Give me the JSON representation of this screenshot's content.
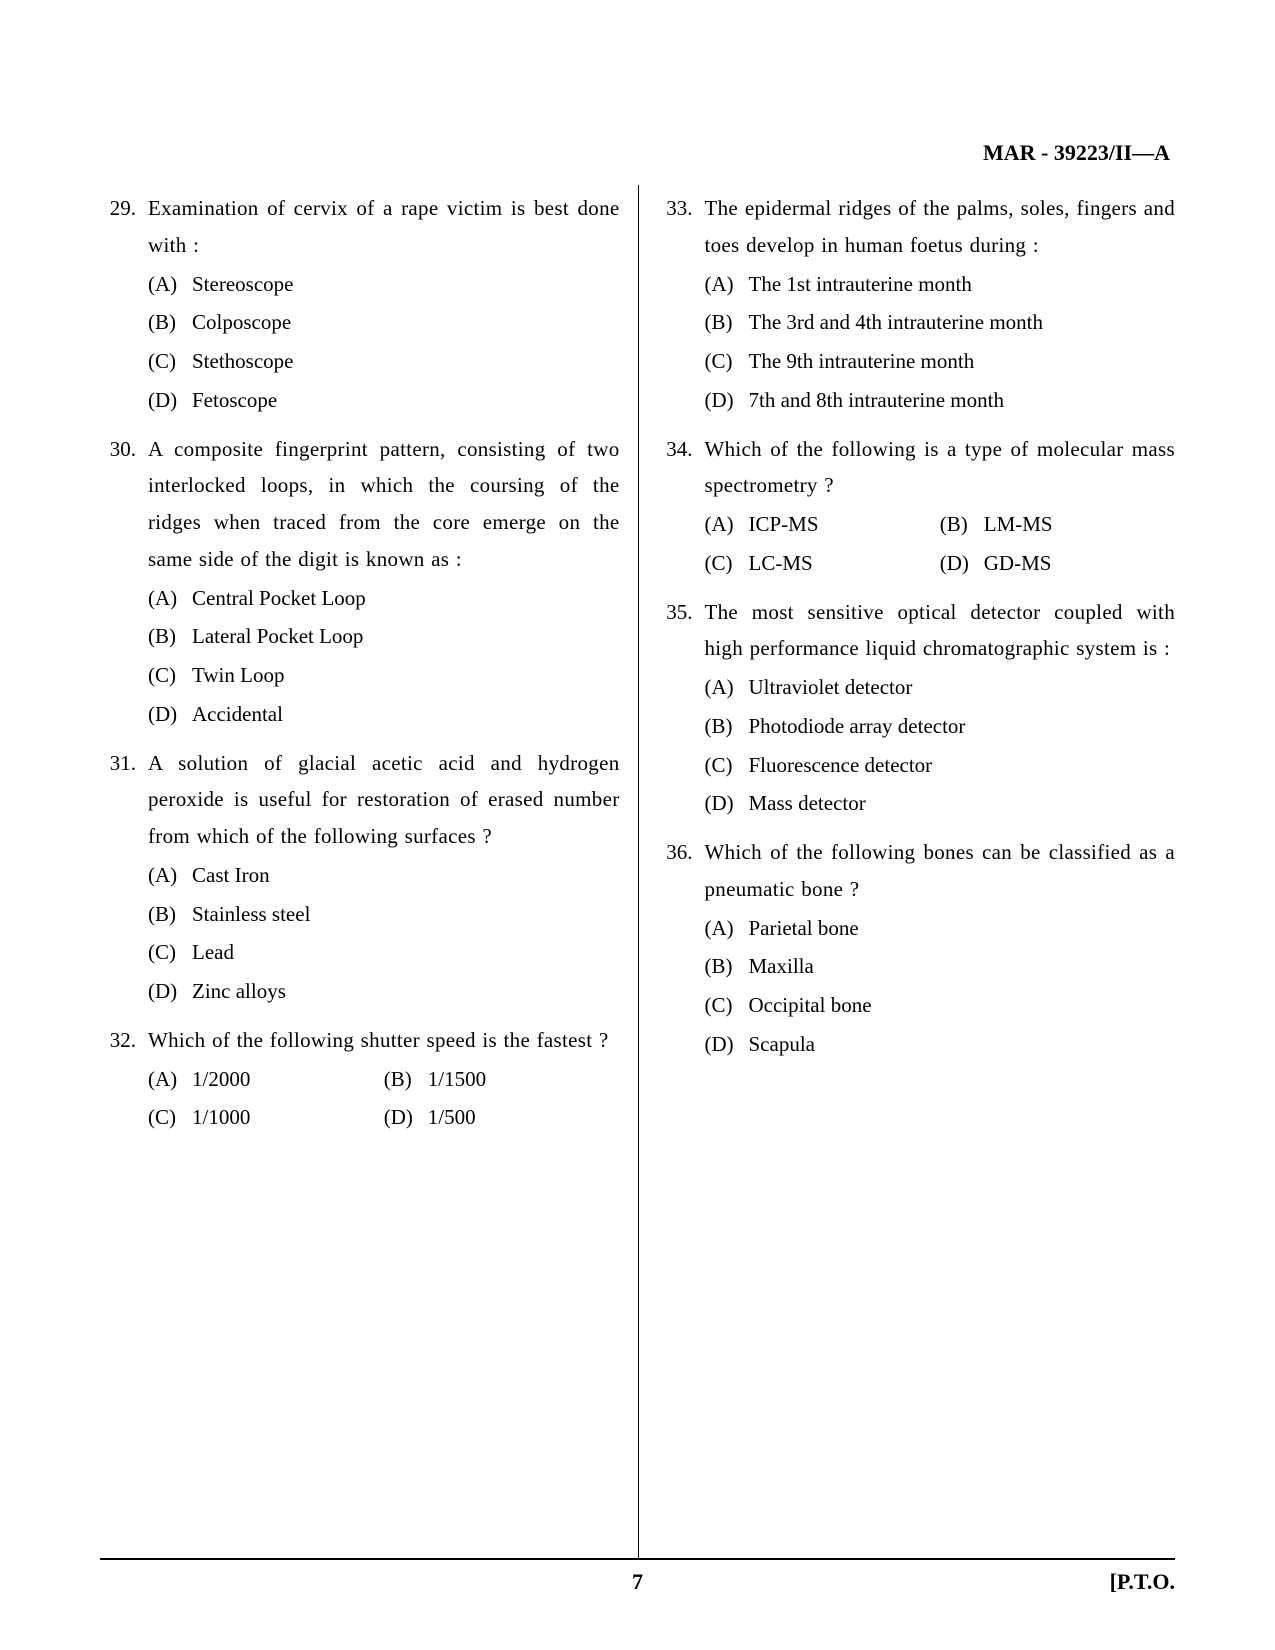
{
  "header": {
    "code": "MAR - 39223/II—A"
  },
  "footer": {
    "page": "7",
    "pto": "[P.T.O."
  },
  "left": [
    {
      "num": "29.",
      "text": "Examination of cervix of a rape victim is best done with :",
      "layout": "col",
      "options": [
        {
          "l": "(A)",
          "t": "Stereoscope"
        },
        {
          "l": "(B)",
          "t": "Colposcope"
        },
        {
          "l": "(C)",
          "t": "Stethoscope"
        },
        {
          "l": "(D)",
          "t": "Fetoscope"
        }
      ]
    },
    {
      "num": "30.",
      "text": "A composite fingerprint pattern, consisting of two interlocked loops, in which the coursing of the ridges when traced from the core emerge on the same side of the digit is known as :",
      "layout": "col",
      "options": [
        {
          "l": "(A)",
          "t": "Central Pocket Loop"
        },
        {
          "l": "(B)",
          "t": "Lateral Pocket Loop"
        },
        {
          "l": "(C)",
          "t": "Twin Loop"
        },
        {
          "l": "(D)",
          "t": "Accidental"
        }
      ]
    },
    {
      "num": "31.",
      "text": "A solution of glacial acetic acid and hydrogen peroxide is useful for restoration of erased number from which of the following surfaces ?",
      "layout": "col",
      "options": [
        {
          "l": "(A)",
          "t": "Cast Iron"
        },
        {
          "l": "(B)",
          "t": "Stainless steel"
        },
        {
          "l": "(C)",
          "t": "Lead"
        },
        {
          "l": "(D)",
          "t": "Zinc alloys"
        }
      ]
    },
    {
      "num": "32.",
      "text": "Which of the following shutter speed is the fastest ?",
      "layout": "row",
      "options": [
        {
          "l": "(A)",
          "t": "1/2000"
        },
        {
          "l": "(B)",
          "t": "1/1500"
        },
        {
          "l": "(C)",
          "t": "1/1000"
        },
        {
          "l": "(D)",
          "t": "1/500"
        }
      ]
    }
  ],
  "right": [
    {
      "num": "33.",
      "text": "The epidermal ridges of the palms, soles, fingers and toes develop in human foetus during :",
      "layout": "col",
      "options": [
        {
          "l": "(A)",
          "t": "The 1st intrauterine month"
        },
        {
          "l": "(B)",
          "t": "The 3rd and 4th intrauterine month"
        },
        {
          "l": "(C)",
          "t": "The 9th intrauterine month"
        },
        {
          "l": "(D)",
          "t": "7th and 8th intrauterine month"
        }
      ]
    },
    {
      "num": "34.",
      "text": "Which of the following is a type of molecular mass spectrometry ?",
      "layout": "row",
      "options": [
        {
          "l": "(A)",
          "t": "ICP-MS"
        },
        {
          "l": "(B)",
          "t": "LM-MS"
        },
        {
          "l": "(C)",
          "t": "LC-MS"
        },
        {
          "l": "(D)",
          "t": "GD-MS"
        }
      ]
    },
    {
      "num": "35.",
      "text": "The most sensitive optical detector coupled with high performance liquid chromatographic system is :",
      "layout": "col",
      "options": [
        {
          "l": "(A)",
          "t": "Ultraviolet detector"
        },
        {
          "l": "(B)",
          "t": "Photodiode array detector"
        },
        {
          "l": "(C)",
          "t": "Fluorescence detector"
        },
        {
          "l": "(D)",
          "t": "Mass detector"
        }
      ]
    },
    {
      "num": "36.",
      "text": "Which of the following bones can be classified as a pneumatic bone ?",
      "layout": "col",
      "options": [
        {
          "l": "(A)",
          "t": "Parietal bone"
        },
        {
          "l": "(B)",
          "t": "Maxilla"
        },
        {
          "l": "(C)",
          "t": "Occipital bone"
        },
        {
          "l": "(D)",
          "t": "Scapula"
        }
      ]
    }
  ]
}
